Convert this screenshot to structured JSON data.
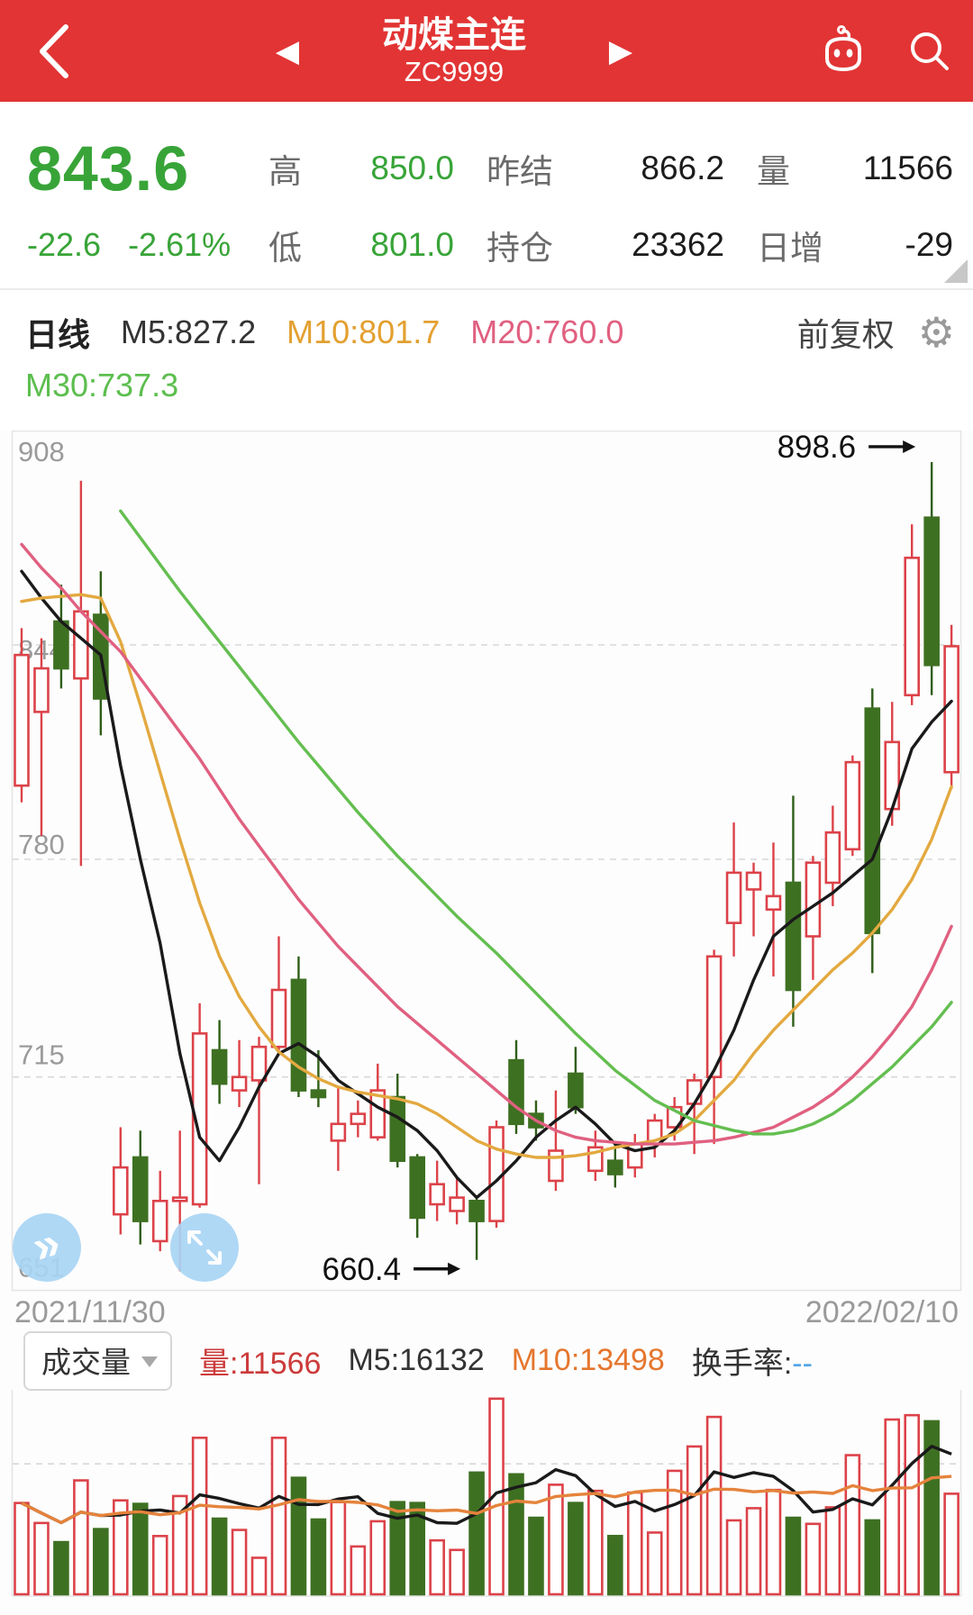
{
  "header": {
    "title": "动煤主连",
    "code": "ZC9999"
  },
  "quote": {
    "last": "843.6",
    "change": "-22.6",
    "change_pct": "-2.61%",
    "high_label": "高",
    "high": "850.0",
    "low_label": "低",
    "low": "801.0",
    "prev_settle_label": "昨结",
    "prev_settle": "866.2",
    "open_interest_label": "持仓",
    "open_interest": "23362",
    "volume_label": "量",
    "volume": "11566",
    "oi_change_label": "日增",
    "oi_change": "-29"
  },
  "toolbar": {
    "period": "日线",
    "ma5_label": "M5:827.2",
    "ma10_label": "M10:801.7",
    "ma20_label": "M20:760.0",
    "ma30_label": "M30:737.3",
    "adjust_label": "前复权",
    "gear_icon": "⚙"
  },
  "dates": {
    "start": "2021/11/30",
    "end": "2022/02/10"
  },
  "volume_header": {
    "selector_label": "成交量",
    "vol_label": "量:11566",
    "m5_label": "M5:16132",
    "m10_label": "M10:13498",
    "turnover_label": "换手率:",
    "turnover_value": "--"
  },
  "colors": {
    "header_red": "#E23434",
    "price_green": "#38A438",
    "candle_up_red": "#DC4249",
    "candle_down_green": "#3E7022",
    "candle_down_wick": "#2F5E18",
    "ma5": "#1a1a1a",
    "ma10": "#E3A940",
    "ma20": "#E06080",
    "ma30": "#64BE50",
    "vol_ma5": "#1a1a1a",
    "vol_ma10": "#E5833C",
    "grid": "#d8d8d8",
    "axis_text": "#9a9a9a",
    "button_blue": "#A9D5F5"
  },
  "chart_data": {
    "type": "candlestick_with_volume",
    "title": "动煤主连 ZC9999 日线",
    "y_ticks": [
      908,
      844,
      780,
      715,
      651
    ],
    "price_range": [
      651,
      908
    ],
    "annotations": [
      {
        "text": "898.6",
        "candle": 46,
        "point": "high"
      },
      {
        "text": "660.4",
        "candle": 23,
        "point": "low"
      }
    ],
    "candles": [
      [
        802,
        849,
        797,
        841
      ],
      [
        824,
        846,
        787,
        837
      ],
      [
        851,
        862,
        831,
        837
      ],
      [
        834,
        893,
        778,
        854
      ],
      [
        853,
        866,
        817,
        828
      ],
      [
        674,
        700,
        668,
        688
      ],
      [
        691,
        699,
        665,
        672
      ],
      [
        666,
        687,
        663,
        678
      ],
      [
        678,
        699,
        657,
        679
      ],
      [
        677,
        737,
        676,
        728
      ],
      [
        723,
        732,
        707,
        713
      ],
      [
        711,
        726,
        706,
        715
      ],
      [
        714,
        727,
        683,
        724
      ],
      [
        724,
        757,
        723,
        741
      ],
      [
        744,
        751,
        709,
        711
      ],
      [
        711,
        723,
        706,
        709
      ],
      [
        696,
        712,
        687,
        701
      ],
      [
        701,
        708,
        697,
        704
      ],
      [
        697,
        719,
        696,
        711
      ],
      [
        709,
        716,
        688,
        690
      ],
      [
        691,
        692,
        667,
        673
      ],
      [
        677,
        690,
        672,
        683
      ],
      [
        675,
        685,
        671,
        679
      ],
      [
        678,
        679,
        660.4,
        672
      ],
      [
        672,
        702,
        670,
        700
      ],
      [
        720,
        726,
        698,
        701
      ],
      [
        704,
        708,
        696,
        700
      ],
      [
        684,
        711,
        681,
        693
      ],
      [
        716,
        724,
        704,
        706
      ],
      [
        687,
        699,
        684,
        694
      ],
      [
        690,
        695,
        682,
        686
      ],
      [
        688,
        698,
        685,
        695
      ],
      [
        695,
        704,
        691,
        702
      ],
      [
        700,
        709,
        696,
        706
      ],
      [
        707,
        716,
        692,
        714
      ],
      [
        715,
        753,
        695,
        751
      ],
      [
        761,
        791,
        751,
        776
      ],
      [
        771,
        779,
        757,
        776
      ],
      [
        765,
        785,
        745,
        769
      ],
      [
        773,
        799,
        730,
        741
      ],
      [
        757,
        781,
        744,
        779
      ],
      [
        773,
        796,
        766,
        788
      ],
      [
        783,
        811,
        781,
        809
      ],
      [
        825,
        831,
        746,
        758
      ],
      [
        795,
        827,
        790,
        815
      ],
      [
        829,
        880,
        826,
        870
      ],
      [
        882,
        898.6,
        829,
        838
      ],
      [
        806,
        850,
        801,
        843.6
      ]
    ],
    "ma_series": [
      {
        "name": "MA5",
        "color": "#1a1a1a",
        "values": [
          866,
          858,
          851,
          846,
          841,
          808,
          780,
          755,
          722,
          697,
          690,
          700,
          712,
          722,
          725,
          721,
          714,
          710,
          706,
          703,
          699,
          693,
          685,
          679,
          684,
          690,
          697,
          702,
          706,
          701,
          695,
          693,
          694,
          699,
          707,
          717,
          729,
          744,
          757,
          762,
          766,
          770,
          775,
          780,
          795,
          813,
          821,
          827.2
        ]
      },
      {
        "name": "MA10",
        "color": "#E3A940",
        "values": [
          857,
          858,
          858.5,
          859,
          858,
          845,
          826,
          806,
          786,
          767,
          751,
          739,
          730,
          722.5,
          718,
          714.5,
          712,
          710.5,
          709.5,
          708.5,
          707,
          704,
          700,
          696,
          693.5,
          692,
          691,
          691,
          691.5,
          692.5,
          694,
          695,
          696,
          698,
          702,
          708,
          714,
          722,
          729,
          735,
          741,
          747,
          752,
          758,
          765,
          774,
          786,
          801.7
        ]
      },
      {
        "name": "MA20",
        "color": "#E06080",
        "values": [
          874,
          867,
          861,
          854,
          848,
          842,
          834,
          826,
          818,
          810,
          801,
          792,
          784,
          776,
          768,
          761,
          754,
          748,
          742,
          736,
          731,
          726,
          721,
          716,
          711,
          706,
          702,
          699,
          697,
          696,
          695.5,
          695,
          695,
          695,
          695.5,
          696,
          697,
          698.5,
          700,
          703,
          706,
          710,
          715,
          721,
          728,
          736,
          747,
          760
        ]
      },
      {
        "name": "MA30",
        "color": "#64BE50",
        "values": [
          null,
          null,
          null,
          null,
          null,
          884,
          876,
          868,
          860,
          852.5,
          845,
          837.5,
          830,
          822.5,
          815,
          808,
          801,
          794,
          787.5,
          781,
          775,
          769,
          763,
          757.5,
          752,
          746,
          740,
          734,
          728,
          722.5,
          717,
          712.5,
          708,
          705,
          702,
          700.5,
          699,
          698,
          698,
          699,
          701,
          704,
          708,
          713,
          718,
          724,
          730,
          737.3
        ]
      }
    ],
    "volumes": [
      10500,
      8200,
      6000,
      13100,
      7500,
      10800,
      10400,
      6700,
      11300,
      18000,
      8700,
      7400,
      4200,
      18000,
      13400,
      8600,
      10600,
      5500,
      8400,
      10600,
      10500,
      6200,
      5100,
      14000,
      22500,
      13800,
      8800,
      12600,
      10500,
      11900,
      6700,
      11700,
      7100,
      14200,
      17000,
      20400,
      8500,
      9900,
      12000,
      8800,
      8100,
      10000,
      16000,
      8500,
      20100,
      20600,
      19900,
      11566
    ],
    "volume_max": 23000,
    "volume_grid_value": 15000,
    "volume_ma_windows": [
      {
        "window": 5,
        "color": "#1a1a1a"
      },
      {
        "window": 10,
        "color": "#E5833C"
      }
    ]
  }
}
